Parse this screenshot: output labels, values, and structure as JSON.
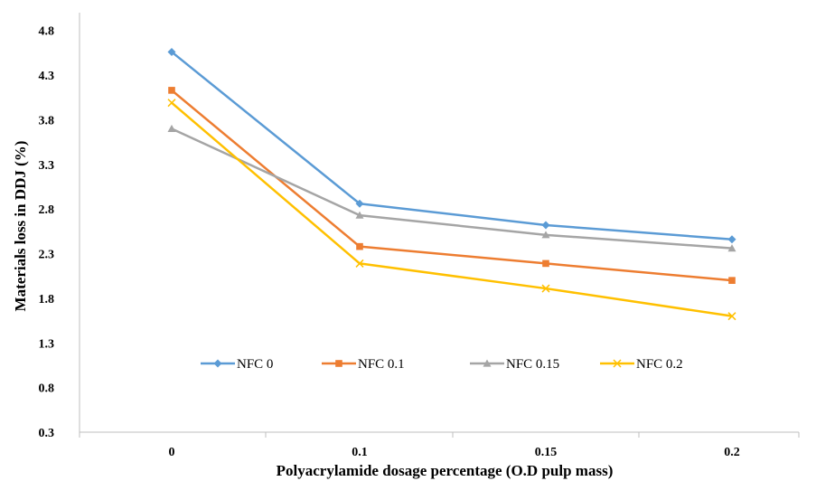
{
  "chart_data": {
    "type": "line",
    "title": "",
    "xlabel": "Polyacrylamide  dosage percentage (O.D pulp mass)",
    "ylabel": "Materials loss  in DDJ  (%)",
    "categories": [
      "0",
      "0.1",
      "0.15",
      "0.2"
    ],
    "yticks": [
      "0.3",
      "0.8",
      "1.3",
      "1.8",
      "2.3",
      "2.8",
      "3.3",
      "3.8",
      "4.3",
      "4.8"
    ],
    "ylim": [
      0.3,
      5.0
    ],
    "grid": false,
    "legend_position": "bottom-inside",
    "series": [
      {
        "name": "NFC 0",
        "values": [
          4.56,
          2.86,
          2.62,
          2.46
        ],
        "color": "#5B9BD5",
        "marker": "diamond"
      },
      {
        "name": "NFC 0.1",
        "values": [
          4.13,
          2.38,
          2.19,
          2.0
        ],
        "color": "#ED7D31",
        "marker": "square"
      },
      {
        "name": "NFC 0.15",
        "values": [
          3.7,
          2.73,
          2.51,
          2.36
        ],
        "color": "#A5A5A5",
        "marker": "triangle"
      },
      {
        "name": "NFC 0.2",
        "values": [
          3.99,
          2.19,
          1.91,
          1.6
        ],
        "color": "#FFC000",
        "marker": "x"
      }
    ]
  }
}
